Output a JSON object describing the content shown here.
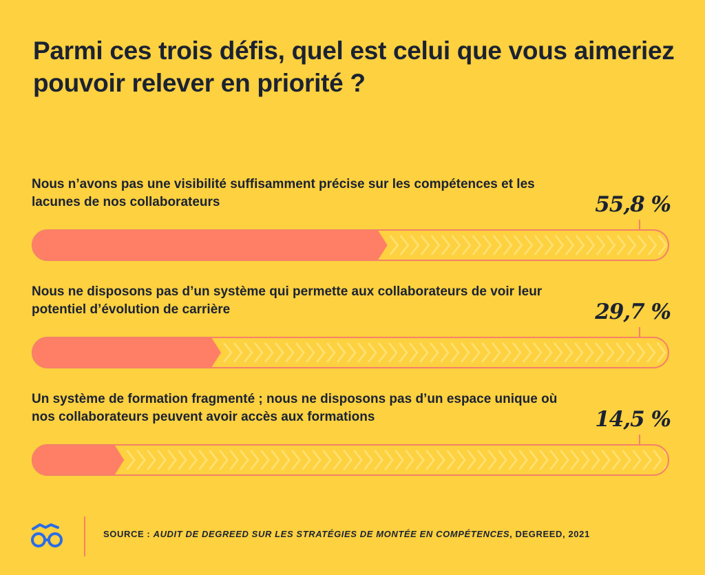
{
  "title": "Parmi ces trois défis, quel est celui que vous aimeriez pouvoir relever en priorité ?",
  "chart_data": {
    "type": "bar",
    "orientation": "horizontal",
    "unit": "%",
    "categories": [
      "Nous n’avons pas une visibilité suffisamment précise sur les compétences et les lacunes de nos collaborateurs",
      "Nous ne disposons pas d’un système qui permette aux collaborateurs de voir leur potentiel d’évolution de carrière",
      "Un système de formation fragmenté ; nous ne disposons pas d’un espace unique où nos collaborateurs peuvent avoir accès aux formations"
    ],
    "values": [
      55.8,
      29.7,
      14.5
    ],
    "value_labels": [
      "55,8 %",
      "29,7 %",
      "14,5 %"
    ],
    "xlim": [
      0,
      100
    ],
    "bar_color": "#FF7F66",
    "track_color": "#F4816A",
    "background": "#FDD13F"
  },
  "footer": {
    "source_prefix": "SOURCE : ",
    "source_italic": "AUDIT DE DEGREED SUR LES STRATÉGIES DE MONTÉE EN COMPÉTENCES",
    "source_suffix": ", DEGREED, 2021",
    "icon": "glasses-logo-icon",
    "icon_color": "#2B6CE6"
  }
}
